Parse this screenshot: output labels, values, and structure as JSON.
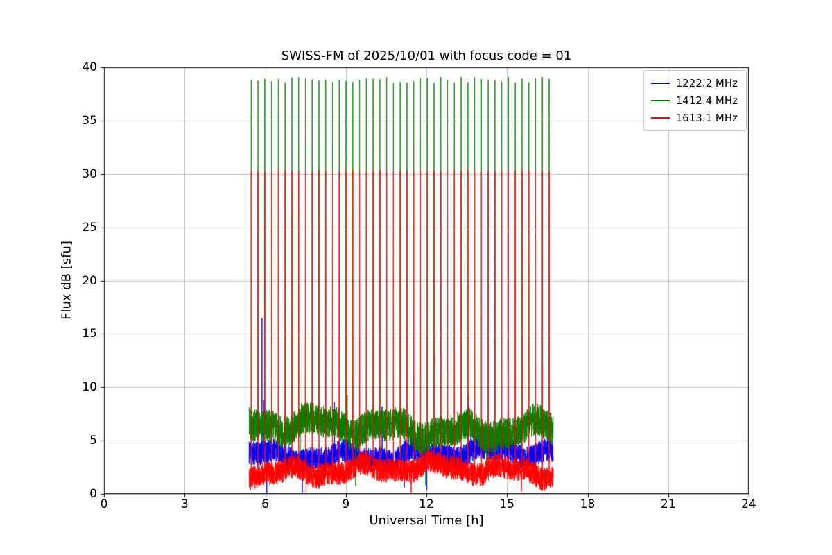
{
  "chart_data": {
    "type": "line",
    "title": "SWISS-FM of 2025/10/01 with focus code = 01",
    "xlabel": "Universal Time [h]",
    "ylabel": "Flux dB [sfu]",
    "xlim": [
      0,
      24
    ],
    "ylim": [
      0,
      40
    ],
    "xticks": [
      0,
      3,
      6,
      9,
      12,
      15,
      18,
      21,
      24
    ],
    "yticks": [
      0,
      5,
      10,
      15,
      20,
      25,
      30,
      35,
      40
    ],
    "grid": true,
    "grid_color": "#b0b0b0",
    "frame_color": "#000000",
    "legend": {
      "position": "upper right"
    },
    "observation": {
      "start_h": 5.4,
      "end_h": 16.72
    },
    "calibration_spikes": {
      "start_h": 5.48,
      "end_h": 16.58,
      "interval_h": 0.252,
      "green_peak_sfu": 38.8,
      "red_peak_sfu": 30.3
    },
    "series": [
      {
        "name": "1222.2 MHz",
        "color": "#0000ff",
        "band": [
          2.3,
          5.1
        ],
        "cal_peak_sfu": null,
        "cal_jitter": 0,
        "events": [
          {
            "t": 5.88,
            "value": 16.5
          },
          {
            "t": 5.96,
            "value": 8.8
          },
          {
            "t": 6.06,
            "value": 0.1
          },
          {
            "t": 7.38,
            "value": 0.15
          },
          {
            "t": 8.58,
            "value": 8.6
          },
          {
            "t": 10.35,
            "value": 8.2
          },
          {
            "t": 11.18,
            "value": 0.6
          },
          {
            "t": 13.55,
            "value": 9.2
          }
        ]
      },
      {
        "name": "1412.4 MHz",
        "color": "#008000",
        "band": [
          4.3,
          8.1
        ],
        "cal_peak_sfu": 38.8,
        "cal_jitter": 0.3,
        "events": [
          {
            "t": 9.05,
            "value": 9.3
          },
          {
            "t": 11.97,
            "value": 0.8
          }
        ]
      },
      {
        "name": "1613.1 MHz",
        "color": "#ff0000",
        "band": [
          0.8,
          3.6
        ],
        "cal_peak_sfu": 30.3,
        "cal_jitter": 0.08,
        "events": [
          {
            "t": 7.52,
            "value": 0.2
          }
        ]
      }
    ]
  }
}
